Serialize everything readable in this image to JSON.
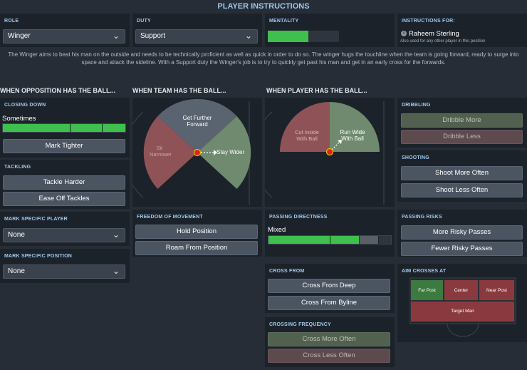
{
  "header": {
    "title": "PLAYER INSTRUCTIONS"
  },
  "role": {
    "label": "ROLE",
    "value": "Winger"
  },
  "duty": {
    "label": "DUTY",
    "value": "Support"
  },
  "mentality": {
    "label": "MENTALITY",
    "level": 0.57
  },
  "instructions_for": {
    "label": "INSTRUCTIONS FOR:",
    "player": "Raheem Sterling",
    "note": "Also used for any other player in this position"
  },
  "description": "The Winger aims to beat his man on the outside and needs to be technically proficient as well as quick in order to do so. The winger hugs the touchline when the team is going forward, ready to surge into space and attack the sideline. With a Support duty the Winger's job is to try to quickly get past his man and get in an early cross for the forwards.",
  "sections": {
    "opposition": "WHEN OPPOSITION HAS THE BALL...",
    "team": "WHEN TEAM HAS THE BALL...",
    "player": "WHEN PLAYER HAS THE BALL..."
  },
  "closing_down": {
    "label": "CLOSING DOWN",
    "value": "Sometimes",
    "level": 1.0,
    "button": "Mark Tighter"
  },
  "tackling": {
    "label": "TACKLING",
    "harder": "Tackle Harder",
    "ease": "Ease Off Tackles"
  },
  "mark_player": {
    "label": "MARK SPECIFIC PLAYER",
    "value": "None"
  },
  "mark_position": {
    "label": "MARK SPECIFIC POSITION",
    "value": "None"
  },
  "team_pitch": {
    "top": "Get Further Forward",
    "left": "Sit Narrower",
    "right": "Stay Wider"
  },
  "player_pitch": {
    "left": "Cut Inside With Ball",
    "right": "Run Wide With Ball"
  },
  "freedom": {
    "label": "FREEDOM OF MOVEMENT",
    "hold": "Hold Position",
    "roam": "Roam From Position"
  },
  "dribbling": {
    "label": "DRIBBLING",
    "more": "Dribble More",
    "less": "Dribble Less"
  },
  "shooting": {
    "label": "SHOOTING",
    "more": "Shoot More Often",
    "less": "Shoot Less Often"
  },
  "passing_directness": {
    "label": "PASSING DIRECTNESS",
    "value": "Mixed",
    "level": 0.74
  },
  "passing_risks": {
    "label": "PASSING RISKS",
    "more": "More Risky Passes",
    "fewer": "Fewer Risky Passes"
  },
  "cross_from": {
    "label": "CROSS FROM",
    "deep": "Cross From Deep",
    "byline": "Cross From Byline"
  },
  "crossing_frequency": {
    "label": "CROSSING FREQUENCY",
    "more": "Cross More Often",
    "less": "Cross Less Often"
  },
  "aim_crosses": {
    "label": "AIM CROSSES AT",
    "far": "Far Post",
    "center": "Center",
    "near": "Near Post",
    "target": "Target Man"
  },
  "colors": {
    "green": "#3fbf4d",
    "red_zone": "#8a3a3e",
    "green_zone": "#3c7a3f",
    "accent": "#9fc8ec"
  }
}
